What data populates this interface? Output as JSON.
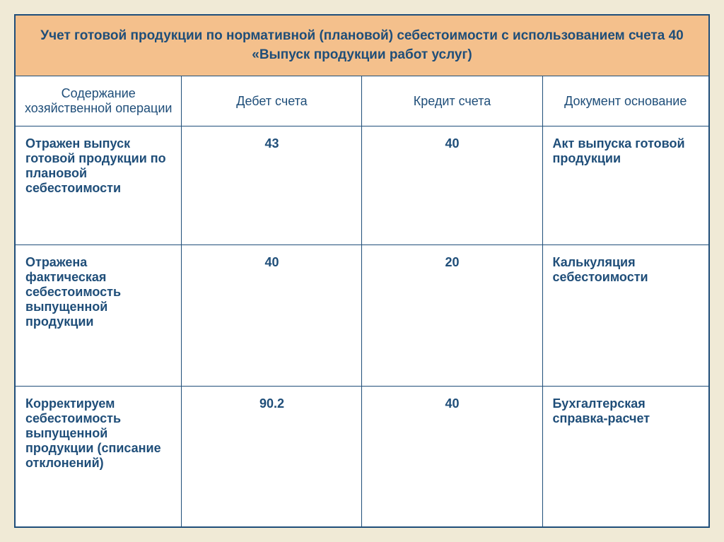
{
  "table": {
    "title": "Учет готовой продукции по нормативной (плановой) себестоимости с использованием счета 40 «Выпуск продукции работ услуг)",
    "columns": [
      "Содержание хозяйственной операции",
      "Дебет счета",
      "Кредит счета",
      "Документ основание"
    ],
    "rows": [
      {
        "description": "Отражен выпуск готовой продукции по плановой себестоимости",
        "debit": "43",
        "credit": "40",
        "document": "Акт выпуска готовой продукции"
      },
      {
        "description": "Отражена фактическая себестоимость выпущенной продукции",
        "debit": "40",
        "credit": "20",
        "document": "Калькуляция себестоимости"
      },
      {
        "description": "Корректируем себестоимость выпущенной продукции (списание отклонений)",
        "debit": "90.2",
        "credit": "40",
        "document": "Бухгалтерская справка-расчет"
      }
    ],
    "colors": {
      "title_bg": "#f4c08c",
      "cell_bg": "#ffffff",
      "border": "#1f4e79",
      "text": "#1f4e79",
      "page_bg": "#f0ead6"
    },
    "font_sizes": {
      "title": 19,
      "header": 18,
      "body": 18,
      "number": 20
    }
  }
}
